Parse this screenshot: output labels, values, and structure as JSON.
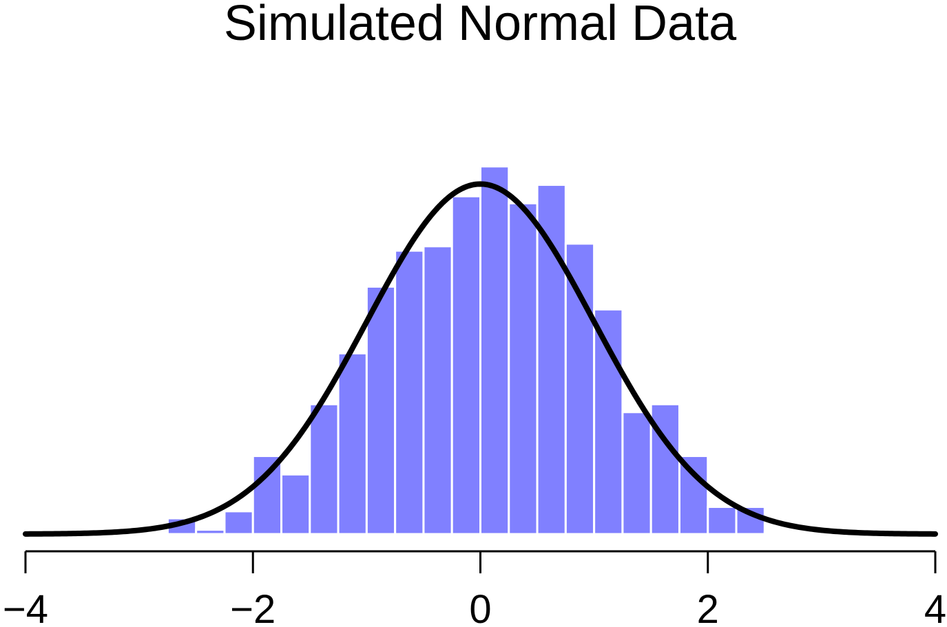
{
  "chart_data": {
    "type": "bar",
    "title": "Simulated Normal Data",
    "xlabel": "",
    "ylabel": "",
    "xlim": [
      -4,
      4
    ],
    "ylim": [
      0,
      0.42
    ],
    "bin_width": 0.25,
    "bins": [
      {
        "x0": -3.0,
        "x1": -2.75,
        "density": 0.0
      },
      {
        "x0": -2.75,
        "x1": -2.5,
        "density": 0.018
      },
      {
        "x0": -2.5,
        "x1": -2.25,
        "density": 0.005
      },
      {
        "x0": -2.25,
        "x1": -2.0,
        "density": 0.026
      },
      {
        "x0": -2.0,
        "x1": -1.75,
        "density": 0.089
      },
      {
        "x0": -1.75,
        "x1": -1.5,
        "density": 0.068
      },
      {
        "x0": -1.5,
        "x1": -1.25,
        "density": 0.148
      },
      {
        "x0": -1.25,
        "x1": -1.0,
        "density": 0.206
      },
      {
        "x0": -1.0,
        "x1": -0.75,
        "density": 0.282
      },
      {
        "x0": -0.75,
        "x1": -0.5,
        "density": 0.323
      },
      {
        "x0": -0.5,
        "x1": -0.25,
        "density": 0.328
      },
      {
        "x0": -0.25,
        "x1": 0.0,
        "density": 0.385
      },
      {
        "x0": 0.0,
        "x1": 0.25,
        "density": 0.419
      },
      {
        "x0": 0.25,
        "x1": 0.5,
        "density": 0.377
      },
      {
        "x0": 0.5,
        "x1": 0.75,
        "density": 0.398
      },
      {
        "x0": 0.75,
        "x1": 1.0,
        "density": 0.331
      },
      {
        "x0": 1.0,
        "x1": 1.25,
        "density": 0.256
      },
      {
        "x0": 1.25,
        "x1": 1.5,
        "density": 0.139
      },
      {
        "x0": 1.5,
        "x1": 1.75,
        "density": 0.148
      },
      {
        "x0": 1.75,
        "x1": 2.0,
        "density": 0.089
      },
      {
        "x0": 2.0,
        "x1": 2.25,
        "density": 0.031
      },
      {
        "x0": 2.25,
        "x1": 2.5,
        "density": 0.031
      },
      {
        "x0": 2.5,
        "x1": 2.75,
        "density": 0.002
      },
      {
        "x0": 2.75,
        "x1": 3.0,
        "density": 0.002
      }
    ],
    "curve": {
      "distribution": "normal",
      "mean": 0,
      "sd": 1,
      "color": "#000000"
    },
    "xticks": [
      -4,
      -2,
      0,
      2,
      4
    ],
    "xtick_labels": [
      "−4",
      "−2",
      "0",
      "2",
      "4"
    ],
    "colors": {
      "bar_fill": "#8080ff",
      "bar_edge": "#ffffff",
      "axis": "#000000"
    },
    "grid": false,
    "legend": "none"
  }
}
